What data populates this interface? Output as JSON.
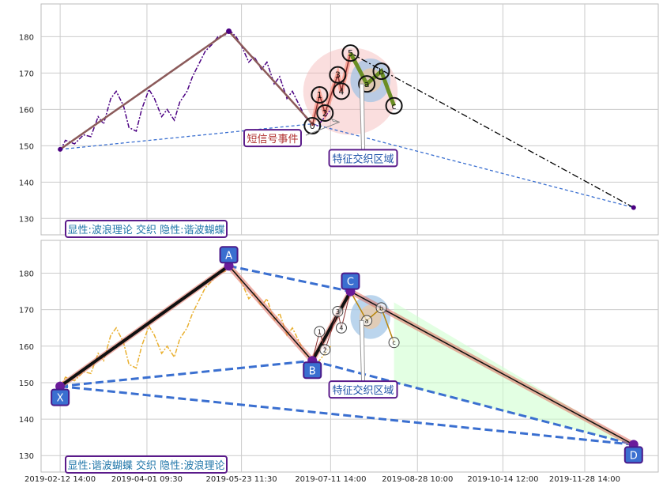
{
  "chart_data": [
    {
      "type": "line",
      "panel": "top",
      "ylim": [
        125.5,
        189
      ],
      "yticks": [
        130,
        140,
        150,
        160,
        170,
        180
      ],
      "colors": {
        "price": "#4b0082",
        "zigzag": "#8b5a5a",
        "wave": "#ff6a4d",
        "abc": "#6b8e23",
        "dashdot": "#000000",
        "dashed": "#3a6fd0",
        "ellipse": "#f4b6b6",
        "circle": "#9ec3e6"
      },
      "price": [
        [
          "2019-02-12 14:00",
          148.5
        ],
        [
          "2019-02-15",
          151.5
        ],
        [
          "2019-02-20",
          150.5
        ],
        [
          "2019-02-25",
          153
        ],
        [
          "2019-03-01",
          152.5
        ],
        [
          "2019-03-05",
          158
        ],
        [
          "2019-03-08",
          156
        ],
        [
          "2019-03-12",
          163
        ],
        [
          "2019-03-15",
          165
        ],
        [
          "2019-03-19",
          161
        ],
        [
          "2019-03-22",
          155
        ],
        [
          "2019-03-26",
          154
        ],
        [
          "2019-03-29",
          160
        ],
        [
          "2019-04-02",
          165.5
        ],
        [
          "2019-04-05",
          163
        ],
        [
          "2019-04-09",
          158
        ],
        [
          "2019-04-12",
          160
        ],
        [
          "2019-04-16",
          157
        ],
        [
          "2019-04-19",
          162
        ],
        [
          "2019-04-23",
          165
        ],
        [
          "2019-04-26",
          169
        ],
        [
          "2019-04-30",
          173
        ],
        [
          "2019-05-03",
          176
        ],
        [
          "2019-05-07",
          178
        ],
        [
          "2019-05-10",
          180
        ],
        [
          "2019-05-14",
          180.5
        ],
        [
          "2019-05-16",
          182
        ],
        [
          "2019-05-20",
          180
        ],
        [
          "2019-05-23 11:30",
          177.5
        ],
        [
          "2019-05-27",
          173
        ],
        [
          "2019-05-30",
          174.5
        ],
        [
          "2019-06-03",
          171
        ],
        [
          "2019-06-06",
          173
        ],
        [
          "2019-06-10",
          167
        ],
        [
          "2019-06-13",
          169
        ],
        [
          "2019-06-17",
          163
        ],
        [
          "2019-06-20",
          165
        ],
        [
          "2019-06-24",
          161
        ],
        [
          "2019-06-27",
          158
        ],
        [
          "2019-07-01",
          156
        ],
        [
          "2019-07-04",
          155.5
        ],
        [
          "2019-07-08",
          158
        ],
        [
          "2019-07-11 14:00",
          160
        ]
      ],
      "zigzag": [
        [
          "2019-02-12 14:00",
          149
        ],
        [
          "2019-05-16",
          181.5
        ],
        [
          "2019-07-01",
          156
        ]
      ],
      "waves": [
        {
          "label": "0",
          "x": "2019-07-01",
          "y": 155.5
        },
        {
          "label": "1",
          "x": "2019-07-05",
          "y": 164
        },
        {
          "label": "2",
          "x": "2019-07-08",
          "y": 159
        },
        {
          "label": "3",
          "x": "2019-07-15",
          "y": 169.5
        },
        {
          "label": "4",
          "x": "2019-07-17",
          "y": 165
        },
        {
          "label": "5",
          "x": "2019-07-22",
          "y": 175.5
        }
      ],
      "abc": [
        {
          "label": "a",
          "x": "2019-07-31",
          "y": 167
        },
        {
          "label": "b",
          "x": "2019-08-08",
          "y": 170.5
        },
        {
          "label": "c",
          "x": "2019-08-15",
          "y": 161
        }
      ],
      "dashdot": [
        [
          "2019-07-22",
          175.5
        ],
        [
          "2019-12-25",
          133
        ]
      ],
      "dashed": [
        [
          "2019-02-12 14:00",
          149
        ],
        [
          "2019-07-01",
          156
        ],
        [
          "2019-12-25",
          133
        ]
      ],
      "ellipse": {
        "cx": "2019-07-22",
        "cy": 165,
        "rx_days": 26,
        "ry": 12
      },
      "circle": {
        "cx": "2019-08-02",
        "cy": 168,
        "rx_days": 11,
        "ry": 6
      },
      "annotations": {
        "short_signal": "短信号事件",
        "feature_zone": "特征交织区域",
        "legend": "显性:波浪理论 交织 隐性:谐波蝴蝶"
      }
    },
    {
      "type": "line",
      "panel": "bottom",
      "ylim": [
        125.5,
        189
      ],
      "yticks": [
        130,
        140,
        150,
        160,
        170,
        180
      ],
      "xtick_labels": [
        "2019-02-12 14:00",
        "2019-04-01 09:30",
        "2019-05-23 11:30",
        "2019-07-11 14:00",
        "2019-08-28 10:00",
        "2019-10-14 12:00",
        "2019-11-28 14:00"
      ],
      "colors": {
        "price": "#e9b030",
        "xabcd": "#000000",
        "xabcd_outline": "#e07060",
        "dashed": "#3a6fd0",
        "node": "#3a6fd0",
        "fill": "#ccffcc",
        "circle": "#9ec3e6"
      },
      "points": [
        {
          "label": "X",
          "x": "2019-02-12 14:00",
          "y": 149
        },
        {
          "label": "A",
          "x": "2019-05-16",
          "y": 182
        },
        {
          "label": "B",
          "x": "2019-07-01",
          "y": 156
        },
        {
          "label": "C",
          "x": "2019-07-22",
          "y": 175
        },
        {
          "label": "D",
          "x": "2019-12-25",
          "y": 133
        }
      ],
      "waves": [
        {
          "label": "1",
          "x": "2019-07-05",
          "y": 164
        },
        {
          "label": "2",
          "x": "2019-07-08",
          "y": 159
        },
        {
          "label": "3",
          "x": "2019-07-15",
          "y": 169.5
        },
        {
          "label": "4",
          "x": "2019-07-17",
          "y": 165
        }
      ],
      "abc": [
        {
          "label": "a",
          "x": "2019-07-31",
          "y": 167
        },
        {
          "label": "b",
          "x": "2019-08-08",
          "y": 170.5
        },
        {
          "label": "c",
          "x": "2019-08-15",
          "y": 161
        }
      ],
      "fill_poly": [
        [
          "2019-08-15",
          172
        ],
        [
          "2019-12-25",
          133
        ],
        [
          "2019-08-15",
          150
        ]
      ],
      "circle": {
        "cx": "2019-08-02",
        "cy": 168,
        "rx_days": 11,
        "ry": 6
      },
      "annotations": {
        "feature_zone": "特征交织区域",
        "legend": "显性:谐波蝴蝶 交织 隐性:波浪理论"
      }
    }
  ]
}
